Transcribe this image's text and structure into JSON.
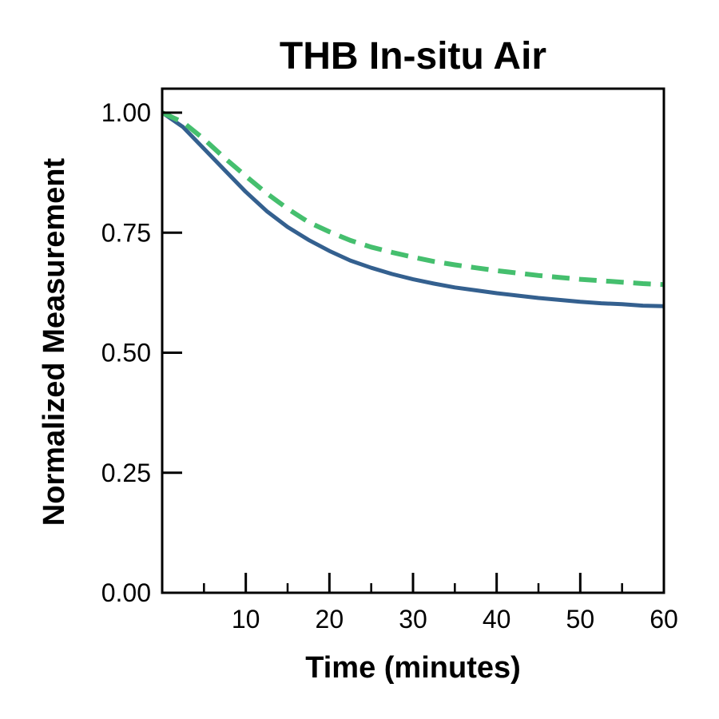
{
  "chart_data": {
    "type": "line",
    "title": "THB In-situ Air",
    "xlabel": "Time (minutes)",
    "ylabel": "Normalized Measurement",
    "xlim": [
      0,
      60
    ],
    "ylim": [
      0,
      1.05
    ],
    "x_ticks": [
      10,
      20,
      30,
      40,
      50,
      60
    ],
    "x_tick_labels": [
      "10",
      "20",
      "30",
      "40",
      "50",
      "60"
    ],
    "x_minor_ticks": [
      5,
      15,
      25,
      35,
      45,
      55
    ],
    "y_ticks": [
      0,
      0.25,
      0.5,
      0.75,
      1.0
    ],
    "y_tick_labels": [
      "0.00",
      "0.25",
      "0.50",
      "0.75",
      "1.00"
    ],
    "grid": false,
    "legend": "none",
    "series": [
      {
        "color": "#34608f",
        "style": "solid",
        "x": [
          0,
          2.5,
          5,
          7.5,
          10,
          12.5,
          15,
          17.5,
          20,
          22.5,
          25,
          27.5,
          30,
          32.5,
          35,
          37.5,
          40,
          42.5,
          45,
          47.5,
          50,
          52.5,
          55,
          57.5,
          60
        ],
        "y": [
          1.0,
          0.97,
          0.925,
          0.88,
          0.835,
          0.795,
          0.762,
          0.735,
          0.712,
          0.692,
          0.677,
          0.664,
          0.653,
          0.644,
          0.636,
          0.63,
          0.624,
          0.619,
          0.614,
          0.61,
          0.606,
          0.603,
          0.601,
          0.598,
          0.597
        ]
      },
      {
        "color": "#45bf6e",
        "style": "dashed",
        "x": [
          0,
          2.5,
          5,
          7.5,
          10,
          12.5,
          15,
          17.5,
          20,
          22.5,
          25,
          27.5,
          30,
          32.5,
          35,
          37.5,
          40,
          42.5,
          45,
          47.5,
          50,
          52.5,
          55,
          57.5,
          60
        ],
        "y": [
          1.0,
          0.98,
          0.945,
          0.905,
          0.868,
          0.832,
          0.8,
          0.772,
          0.752,
          0.734,
          0.72,
          0.709,
          0.699,
          0.69,
          0.683,
          0.677,
          0.671,
          0.666,
          0.661,
          0.657,
          0.653,
          0.65,
          0.647,
          0.644,
          0.642
        ]
      }
    ]
  }
}
